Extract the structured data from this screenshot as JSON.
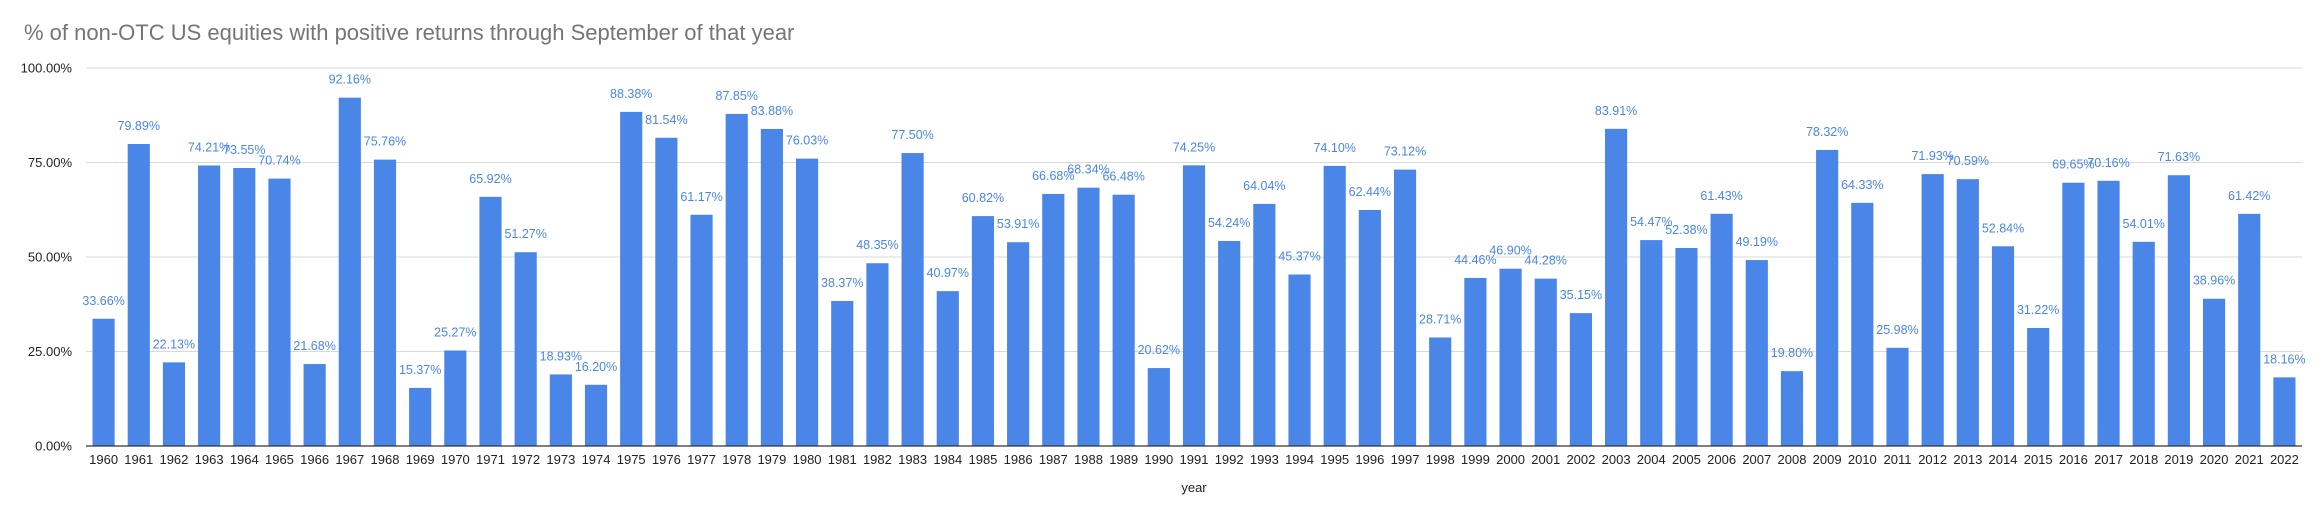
{
  "chart_data": {
    "type": "bar",
    "title": "% of non-OTC US equities with positive returns through September of that year",
    "xlabel": "year",
    "ylabel": "",
    "ylim": [
      0,
      100
    ],
    "yticks": [
      "0.00%",
      "25.00%",
      "50.00%",
      "75.00%",
      "100.00%"
    ],
    "grid": true,
    "bar_color": "#4a86e8",
    "label_color": "#4a86e8",
    "grid_color": "#d9d9d9",
    "axis_color": "#333333",
    "categories": [
      "1960",
      "1961",
      "1962",
      "1963",
      "1964",
      "1965",
      "1966",
      "1967",
      "1968",
      "1969",
      "1970",
      "1971",
      "1972",
      "1973",
      "1974",
      "1975",
      "1976",
      "1977",
      "1978",
      "1979",
      "1980",
      "1981",
      "1982",
      "1983",
      "1984",
      "1985",
      "1986",
      "1987",
      "1988",
      "1989",
      "1990",
      "1991",
      "1992",
      "1993",
      "1994",
      "1995",
      "1996",
      "1997",
      "1998",
      "1999",
      "2000",
      "2001",
      "2002",
      "2003",
      "2004",
      "2005",
      "2006",
      "2007",
      "2008",
      "2009",
      "2010",
      "2011",
      "2012",
      "2013",
      "2014",
      "2015",
      "2016",
      "2017",
      "2018",
      "2019",
      "2020",
      "2021",
      "2022"
    ],
    "values": [
      33.66,
      79.89,
      22.13,
      74.21,
      73.55,
      70.74,
      21.68,
      92.16,
      75.76,
      15.37,
      25.27,
      65.92,
      51.27,
      18.93,
      16.2,
      88.38,
      81.54,
      61.17,
      87.85,
      83.88,
      76.03,
      38.37,
      48.35,
      77.5,
      40.97,
      60.82,
      53.91,
      66.68,
      68.34,
      66.48,
      20.62,
      74.25,
      54.24,
      64.04,
      45.37,
      74.1,
      62.44,
      73.12,
      28.71,
      44.46,
      46.9,
      44.28,
      35.15,
      83.91,
      54.47,
      52.38,
      61.43,
      49.19,
      19.8,
      78.32,
      64.33,
      25.98,
      71.93,
      70.59,
      52.84,
      31.22,
      69.65,
      70.16,
      54.01,
      71.63,
      38.96,
      61.42,
      18.16
    ],
    "data_labels": [
      "33.66%",
      "79.89%",
      "22.13%",
      "74.21%",
      "73.55%",
      "70.74%",
      "21.68%",
      "92.16%",
      "75.76%",
      "15.37%",
      "25.27%",
      "65.92%",
      "51.27%",
      "18.93%",
      "16.20%",
      "88.38%",
      "81.54%",
      "61.17%",
      "87.85%",
      "83.88%",
      "76.03%",
      "38.37%",
      "48.35%",
      "77.50%",
      "40.97%",
      "60.82%",
      "53.91%",
      "66.68%",
      "68.34%",
      "66.48%",
      "20.62%",
      "74.25%",
      "54.24%",
      "64.04%",
      "45.37%",
      "74.10%",
      "62.44%",
      "73.12%",
      "28.71%",
      "44.46%",
      "46.90%",
      "44.28%",
      "35.15%",
      "83.91%",
      "54.47%",
      "52.38%",
      "61.43%",
      "49.19%",
      "19.80%",
      "78.32%",
      "64.33%",
      "25.98%",
      "71.93%",
      "70.59%",
      "52.84%",
      "31.22%",
      "69.65%",
      "70.16%",
      "54.01%",
      "71.63%",
      "38.96%",
      "61.42%",
      "18.16%"
    ]
  }
}
